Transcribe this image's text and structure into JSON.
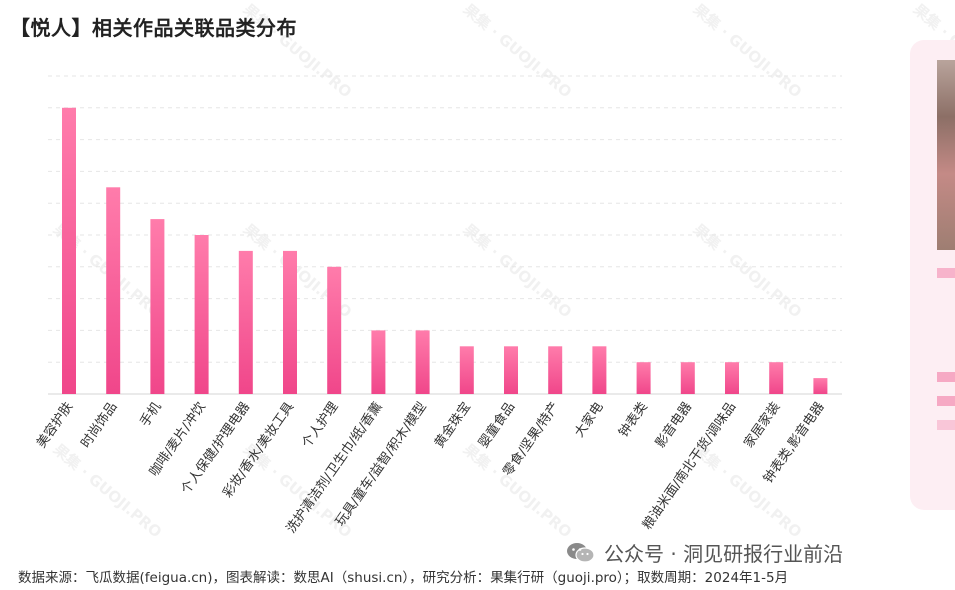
{
  "chart_data": {
    "type": "bar",
    "title": "【悦人】相关作品关联品类分布",
    "categories": [
      "美容护肤",
      "时尚饰品",
      "手机",
      "咖啡/麦片/冲饮",
      "个人保健/护理电器",
      "彩妆/香水/美妆工具",
      "个人护理",
      "洗护清洁剂/卫生巾/纸/香薰",
      "玩具/童车/益智/积木/模型",
      "黄金珠宝",
      "婴童食品",
      "零食/坚果/特产",
      "大家电",
      "钟表类",
      "影音电器",
      "粮油米面/南北干货/调味品",
      "家居家装",
      "钟表类,影音电器"
    ],
    "values": [
      18,
      13,
      11,
      10,
      9,
      9,
      8,
      4,
      4,
      3,
      3,
      3,
      3,
      2,
      2,
      2,
      2,
      1
    ],
    "ylim": [
      0,
      20
    ],
    "grid": true,
    "xlabel": "",
    "ylabel": "",
    "bar_color": "#f0468a",
    "bar_color_light": "#ff7cab"
  },
  "footer": {
    "source": "数据来源：飞瓜数据(feigua.cn)，图表解读：数思AI（shusi.cn），研究分析：果集行研（guoji.pro）；取数周期：2024年1-5月"
  },
  "wechat": {
    "label": "公众号 · 洞见研报行业前沿"
  },
  "watermark": {
    "text": "果集 · GUOJI.PRO"
  }
}
